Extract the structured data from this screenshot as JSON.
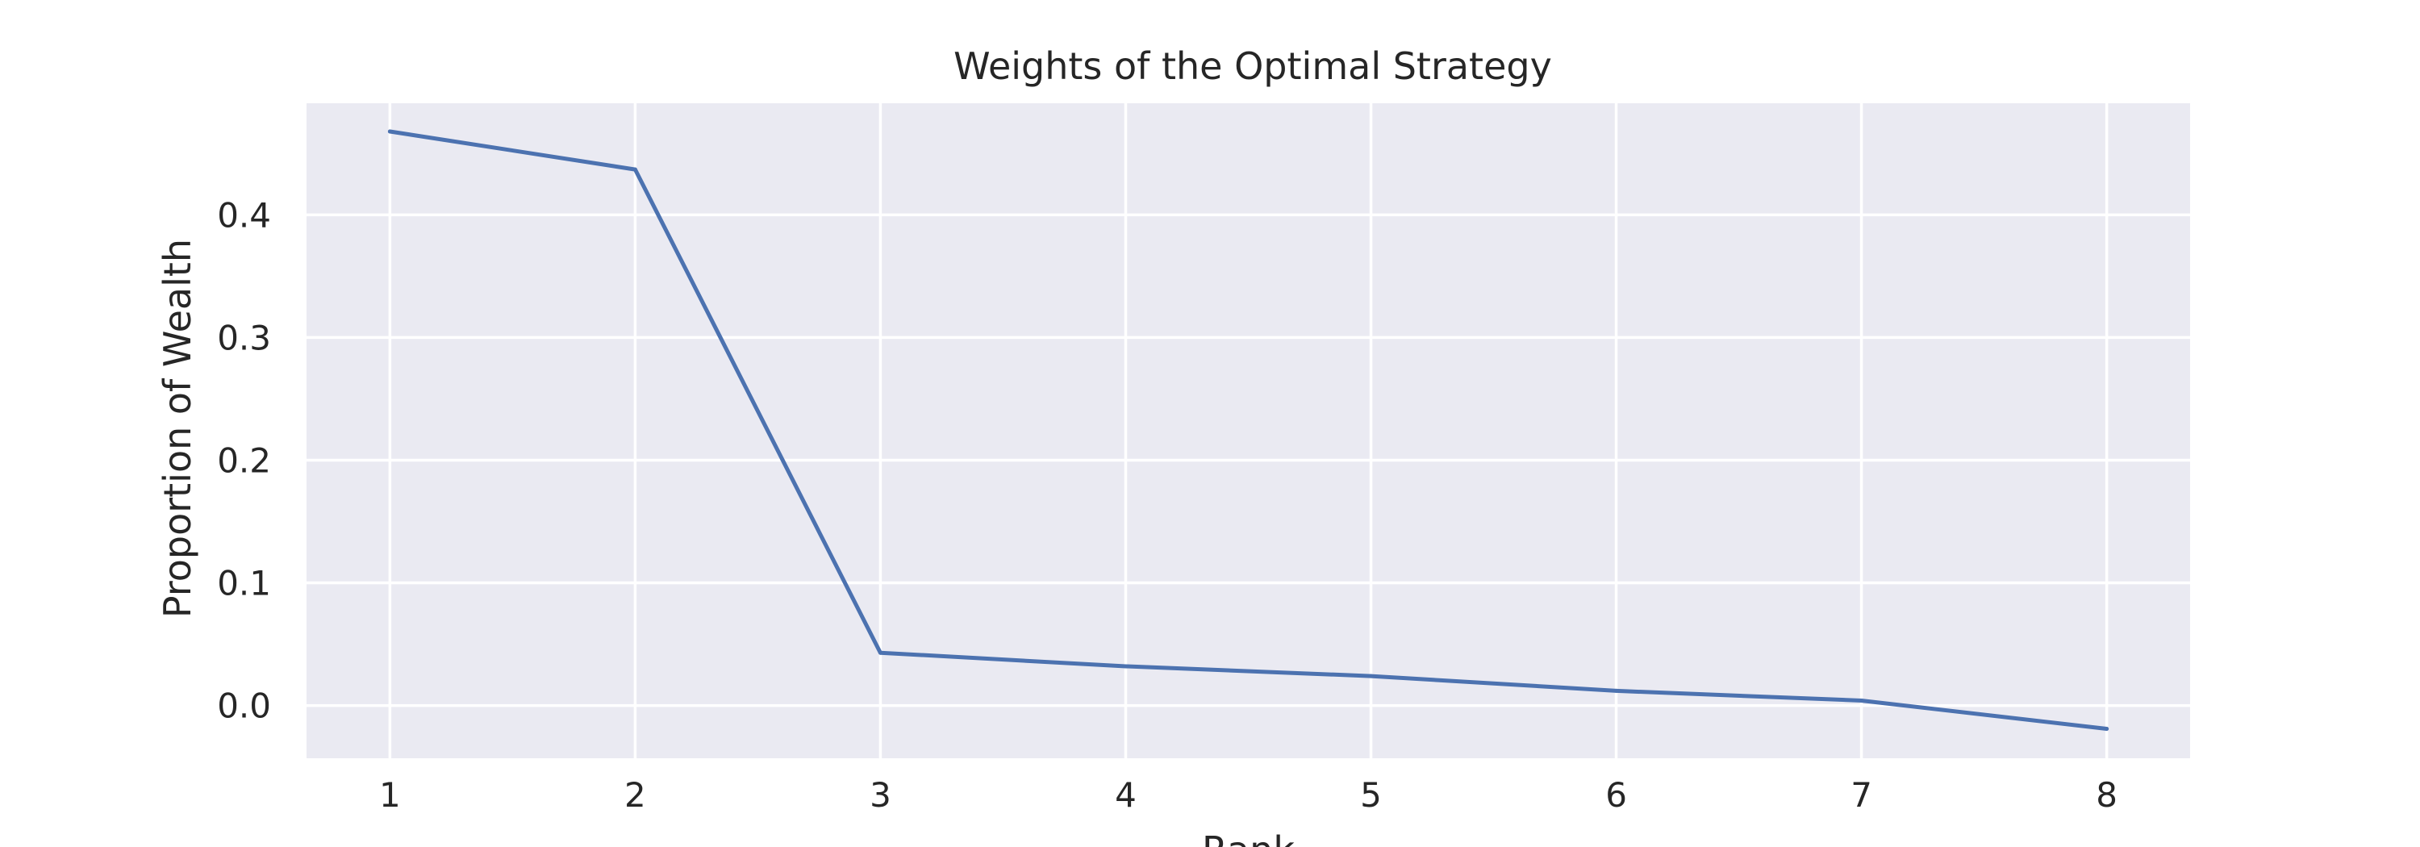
{
  "chart_data": {
    "type": "line",
    "title": "Weights of the Optimal Strategy",
    "xlabel": "Rank",
    "ylabel": "Proportion of Wealth",
    "x": [
      1,
      2,
      3,
      4,
      5,
      6,
      7,
      8
    ],
    "series": [
      {
        "values": [
          0.468,
          0.437,
          0.043,
          0.032,
          0.024,
          0.012,
          0.004,
          -0.019
        ]
      }
    ],
    "xlim": [
      0.66,
      8.34
    ],
    "ylim": [
      -0.043,
      0.491
    ],
    "xticks": [
      "1",
      "2",
      "3",
      "4",
      "5",
      "6",
      "7",
      "8"
    ],
    "yticks": [
      "0.0",
      "0.1",
      "0.2",
      "0.3",
      "0.4"
    ],
    "grid": true,
    "colors": {
      "plot_background": "#eaeaf2",
      "line": "#4c72b0",
      "grid": "#ffffff",
      "text": "#262626"
    }
  }
}
